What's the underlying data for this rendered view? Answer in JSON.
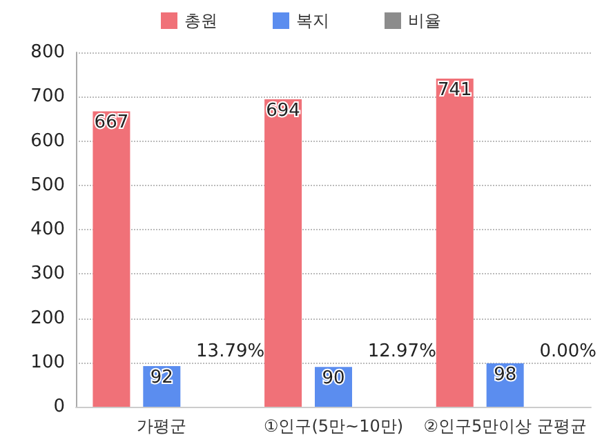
{
  "chart_data": {
    "type": "bar",
    "categories": [
      "가평군",
      "①인구(5만~10만)",
      "②인구5만이상 군평균"
    ],
    "series": [
      {
        "name": "총원",
        "color": "#f07178",
        "values": [
          667,
          694,
          741
        ]
      },
      {
        "name": "복지",
        "color": "#5b8def",
        "values": [
          92,
          90,
          98
        ]
      },
      {
        "name": "비율",
        "color": "#8c8c8c",
        "values": [
          null,
          null,
          null
        ]
      }
    ],
    "ylim": [
      0,
      800
    ],
    "yticks": [
      0,
      100,
      200,
      300,
      400,
      500,
      600,
      700,
      800
    ],
    "grid": "y",
    "legend": "top",
    "data_labels": true,
    "annotations": [
      {
        "text": "13.79%",
        "x": "가평군",
        "y": 100
      },
      {
        "text": "12.97%",
        "x": "①인구(5만~10만)",
        "y": 100
      },
      {
        "text": "0.00%",
        "x": "②인구5만이상 군평균",
        "y": 100
      }
    ]
  }
}
